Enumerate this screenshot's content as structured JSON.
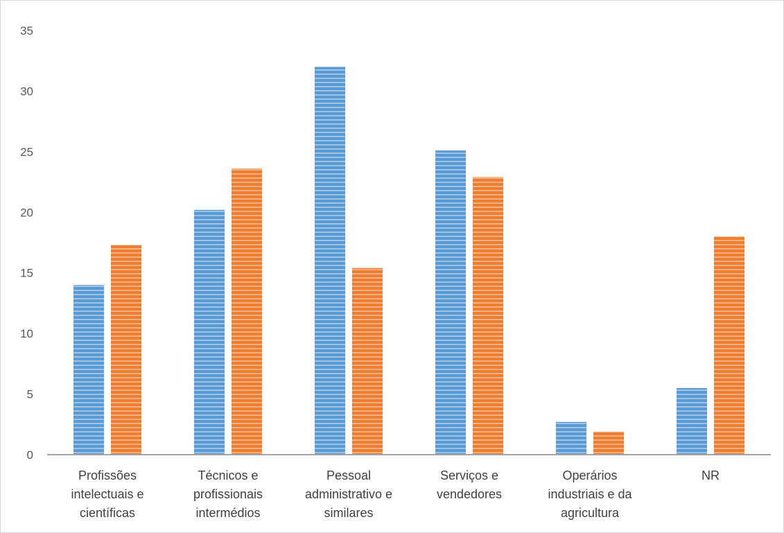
{
  "chart_data": {
    "type": "bar",
    "title": "",
    "xlabel": "",
    "ylabel": "",
    "ylim": [
      0,
      35
    ],
    "yticks": [
      0,
      5,
      10,
      15,
      20,
      25,
      30,
      35
    ],
    "grid": false,
    "legend": "none",
    "categories": [
      [
        "Profissões",
        "intelectuais e",
        "científicas"
      ],
      [
        "Técnicos e",
        "profissionais",
        "intermédios"
      ],
      [
        "Pessoal",
        "administrativo e",
        "similares"
      ],
      [
        "Serviços e",
        "vendedores"
      ],
      [
        "Operários",
        "industriais e da",
        "agricultura"
      ],
      [
        "NR"
      ]
    ],
    "series": [
      {
        "values": [
          14.0,
          20.2,
          32.0,
          25.1,
          2.7,
          5.5
        ],
        "color": "#5b9bd5"
      },
      {
        "values": [
          17.3,
          23.6,
          15.4,
          22.9,
          1.9,
          18.0
        ],
        "color": "#ed7d31"
      }
    ]
  }
}
